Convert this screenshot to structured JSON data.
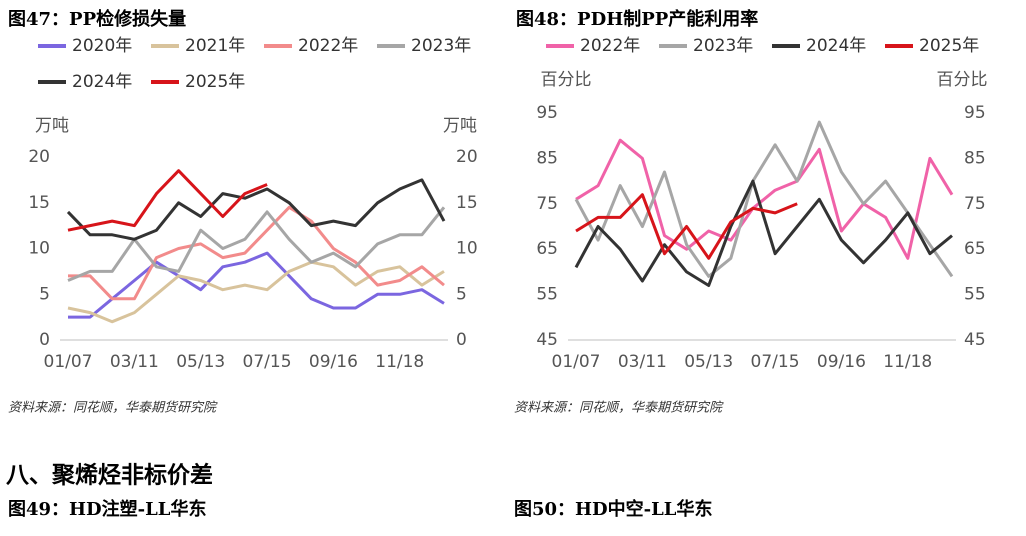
{
  "chart_data": [
    {
      "type": "line",
      "title": "图47：PP检修损失量",
      "y_label": "万吨",
      "y2_label": "万吨",
      "categories": [
        "01/07",
        null,
        null,
        "03/11",
        null,
        null,
        "05/13",
        null,
        null,
        "07/15",
        null,
        null,
        "09/16",
        null,
        null,
        "11/18",
        null,
        null
      ],
      "ylim": [
        0,
        20
      ],
      "yticks": [
        0,
        5,
        10,
        15,
        20
      ],
      "y2lim": [
        0,
        20
      ],
      "y2ticks": [
        0,
        5,
        10,
        15,
        20
      ],
      "series": [
        {
          "name": "2020年",
          "color": "#7b66e0",
          "values": [
            2.5,
            2.5,
            4.5,
            6.5,
            8.5,
            7,
            5.5,
            8,
            8.5,
            9.5,
            7,
            4.5,
            3.5,
            3.5,
            5,
            5,
            5.5,
            4
          ]
        },
        {
          "name": "2021年",
          "color": "#d8c39c",
          "values": [
            3.5,
            3,
            2,
            3,
            5,
            7,
            6.5,
            5.5,
            6,
            5.5,
            7.5,
            8.5,
            8,
            6,
            7.5,
            8,
            6,
            7.5
          ]
        },
        {
          "name": "2022年",
          "color": "#f28b8b",
          "values": [
            7,
            7,
            4.5,
            4.5,
            9,
            10,
            10.5,
            9,
            9.5,
            12,
            14.5,
            13,
            10,
            8.5,
            6,
            6.5,
            8,
            6
          ]
        },
        {
          "name": "2023年",
          "color": "#a6a6a6",
          "values": [
            6.5,
            7.5,
            7.5,
            11,
            8,
            7.5,
            12,
            10,
            11,
            14,
            11,
            8.5,
            9.5,
            8,
            10.5,
            11.5,
            11.5,
            14.5
          ]
        },
        {
          "name": "2024年",
          "color": "#333333",
          "values": [
            14,
            11.5,
            11.5,
            11,
            12,
            15,
            13.5,
            16,
            15.5,
            16.5,
            15,
            12.5,
            13,
            12.5,
            15,
            16.5,
            17.5,
            13
          ]
        },
        {
          "name": "2025年",
          "color": "#d7141a",
          "values": [
            12,
            12.5,
            13,
            12.5,
            16,
            18.5,
            16,
            13.5,
            16,
            17,
            null,
            null,
            null,
            null,
            null,
            null,
            null,
            null
          ]
        }
      ]
    },
    {
      "type": "line",
      "title": "图48：PDH制PP产能利用率",
      "y_label": "百分比",
      "y2_label": "百分比",
      "categories": [
        "01/07",
        null,
        null,
        "03/11",
        null,
        null,
        "05/13",
        null,
        null,
        "07/15",
        null,
        null,
        "09/16",
        null,
        null,
        "11/18",
        null,
        null
      ],
      "ylim": [
        45,
        95
      ],
      "yticks": [
        45,
        55,
        65,
        75,
        85,
        95
      ],
      "y2lim": [
        45,
        95
      ],
      "y2ticks": [
        45,
        55,
        65,
        75,
        85,
        95
      ],
      "series": [
        {
          "name": "2022年",
          "color": "#f062a8",
          "values": [
            76,
            79,
            89,
            85,
            68,
            65,
            69,
            67,
            74,
            78,
            80,
            87,
            69,
            75,
            72,
            63,
            85,
            77
          ]
        },
        {
          "name": "2023年",
          "color": "#a6a6a6",
          "values": [
            76,
            67,
            79,
            70,
            82,
            66,
            59,
            63,
            80,
            88,
            80,
            93,
            82,
            75,
            80,
            73,
            66,
            59
          ]
        },
        {
          "name": "2024年",
          "color": "#333333",
          "values": [
            61,
            70,
            65,
            58,
            66,
            60,
            57,
            70,
            80,
            64,
            70,
            76,
            67,
            62,
            67,
            73,
            64,
            68
          ]
        },
        {
          "name": "2025年",
          "color": "#d7141a",
          "values": [
            69,
            72,
            72,
            77,
            64,
            70,
            63,
            71,
            74,
            73,
            75,
            null,
            null,
            null,
            null,
            null,
            null,
            null
          ]
        }
      ]
    }
  ],
  "sources": [
    "资料来源：同花顺，华泰期货研究院",
    "资料来源：同花顺，华泰期货研究院"
  ],
  "section_title": "八、聚烯烃非标价差",
  "figure_titles": [
    "图49：HD注塑-LL华东",
    "图50：HD中空-LL华东"
  ]
}
